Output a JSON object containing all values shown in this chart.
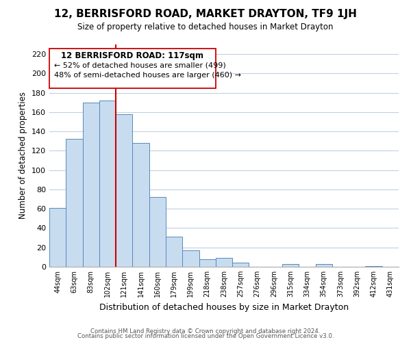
{
  "title": "12, BERRISFORD ROAD, MARKET DRAYTON, TF9 1JH",
  "subtitle": "Size of property relative to detached houses in Market Drayton",
  "xlabel": "Distribution of detached houses by size in Market Drayton",
  "ylabel": "Number of detached properties",
  "bin_labels": [
    "44sqm",
    "63sqm",
    "83sqm",
    "102sqm",
    "121sqm",
    "141sqm",
    "160sqm",
    "179sqm",
    "199sqm",
    "218sqm",
    "238sqm",
    "257sqm",
    "276sqm",
    "296sqm",
    "315sqm",
    "334sqm",
    "354sqm",
    "373sqm",
    "392sqm",
    "412sqm",
    "431sqm"
  ],
  "bar_heights": [
    61,
    132,
    170,
    172,
    158,
    128,
    72,
    31,
    17,
    8,
    9,
    4,
    0,
    0,
    3,
    0,
    3,
    0,
    0,
    1,
    0
  ],
  "bar_color": "#c8dcf0",
  "bar_edge_color": "#5588bb",
  "highlight_color": "#cc0000",
  "ylim": [
    0,
    230
  ],
  "yticks": [
    0,
    20,
    40,
    60,
    80,
    100,
    120,
    140,
    160,
    180,
    200,
    220
  ],
  "annotation_title": "12 BERRISFORD ROAD: 117sqm",
  "annotation_line1": "← 52% of detached houses are smaller (499)",
  "annotation_line2": "48% of semi-detached houses are larger (460) →",
  "footer_line1": "Contains HM Land Registry data © Crown copyright and database right 2024.",
  "footer_line2": "Contains public sector information licensed under the Open Government Licence v3.0.",
  "background_color": "#ffffff",
  "grid_color": "#c0d0e0"
}
